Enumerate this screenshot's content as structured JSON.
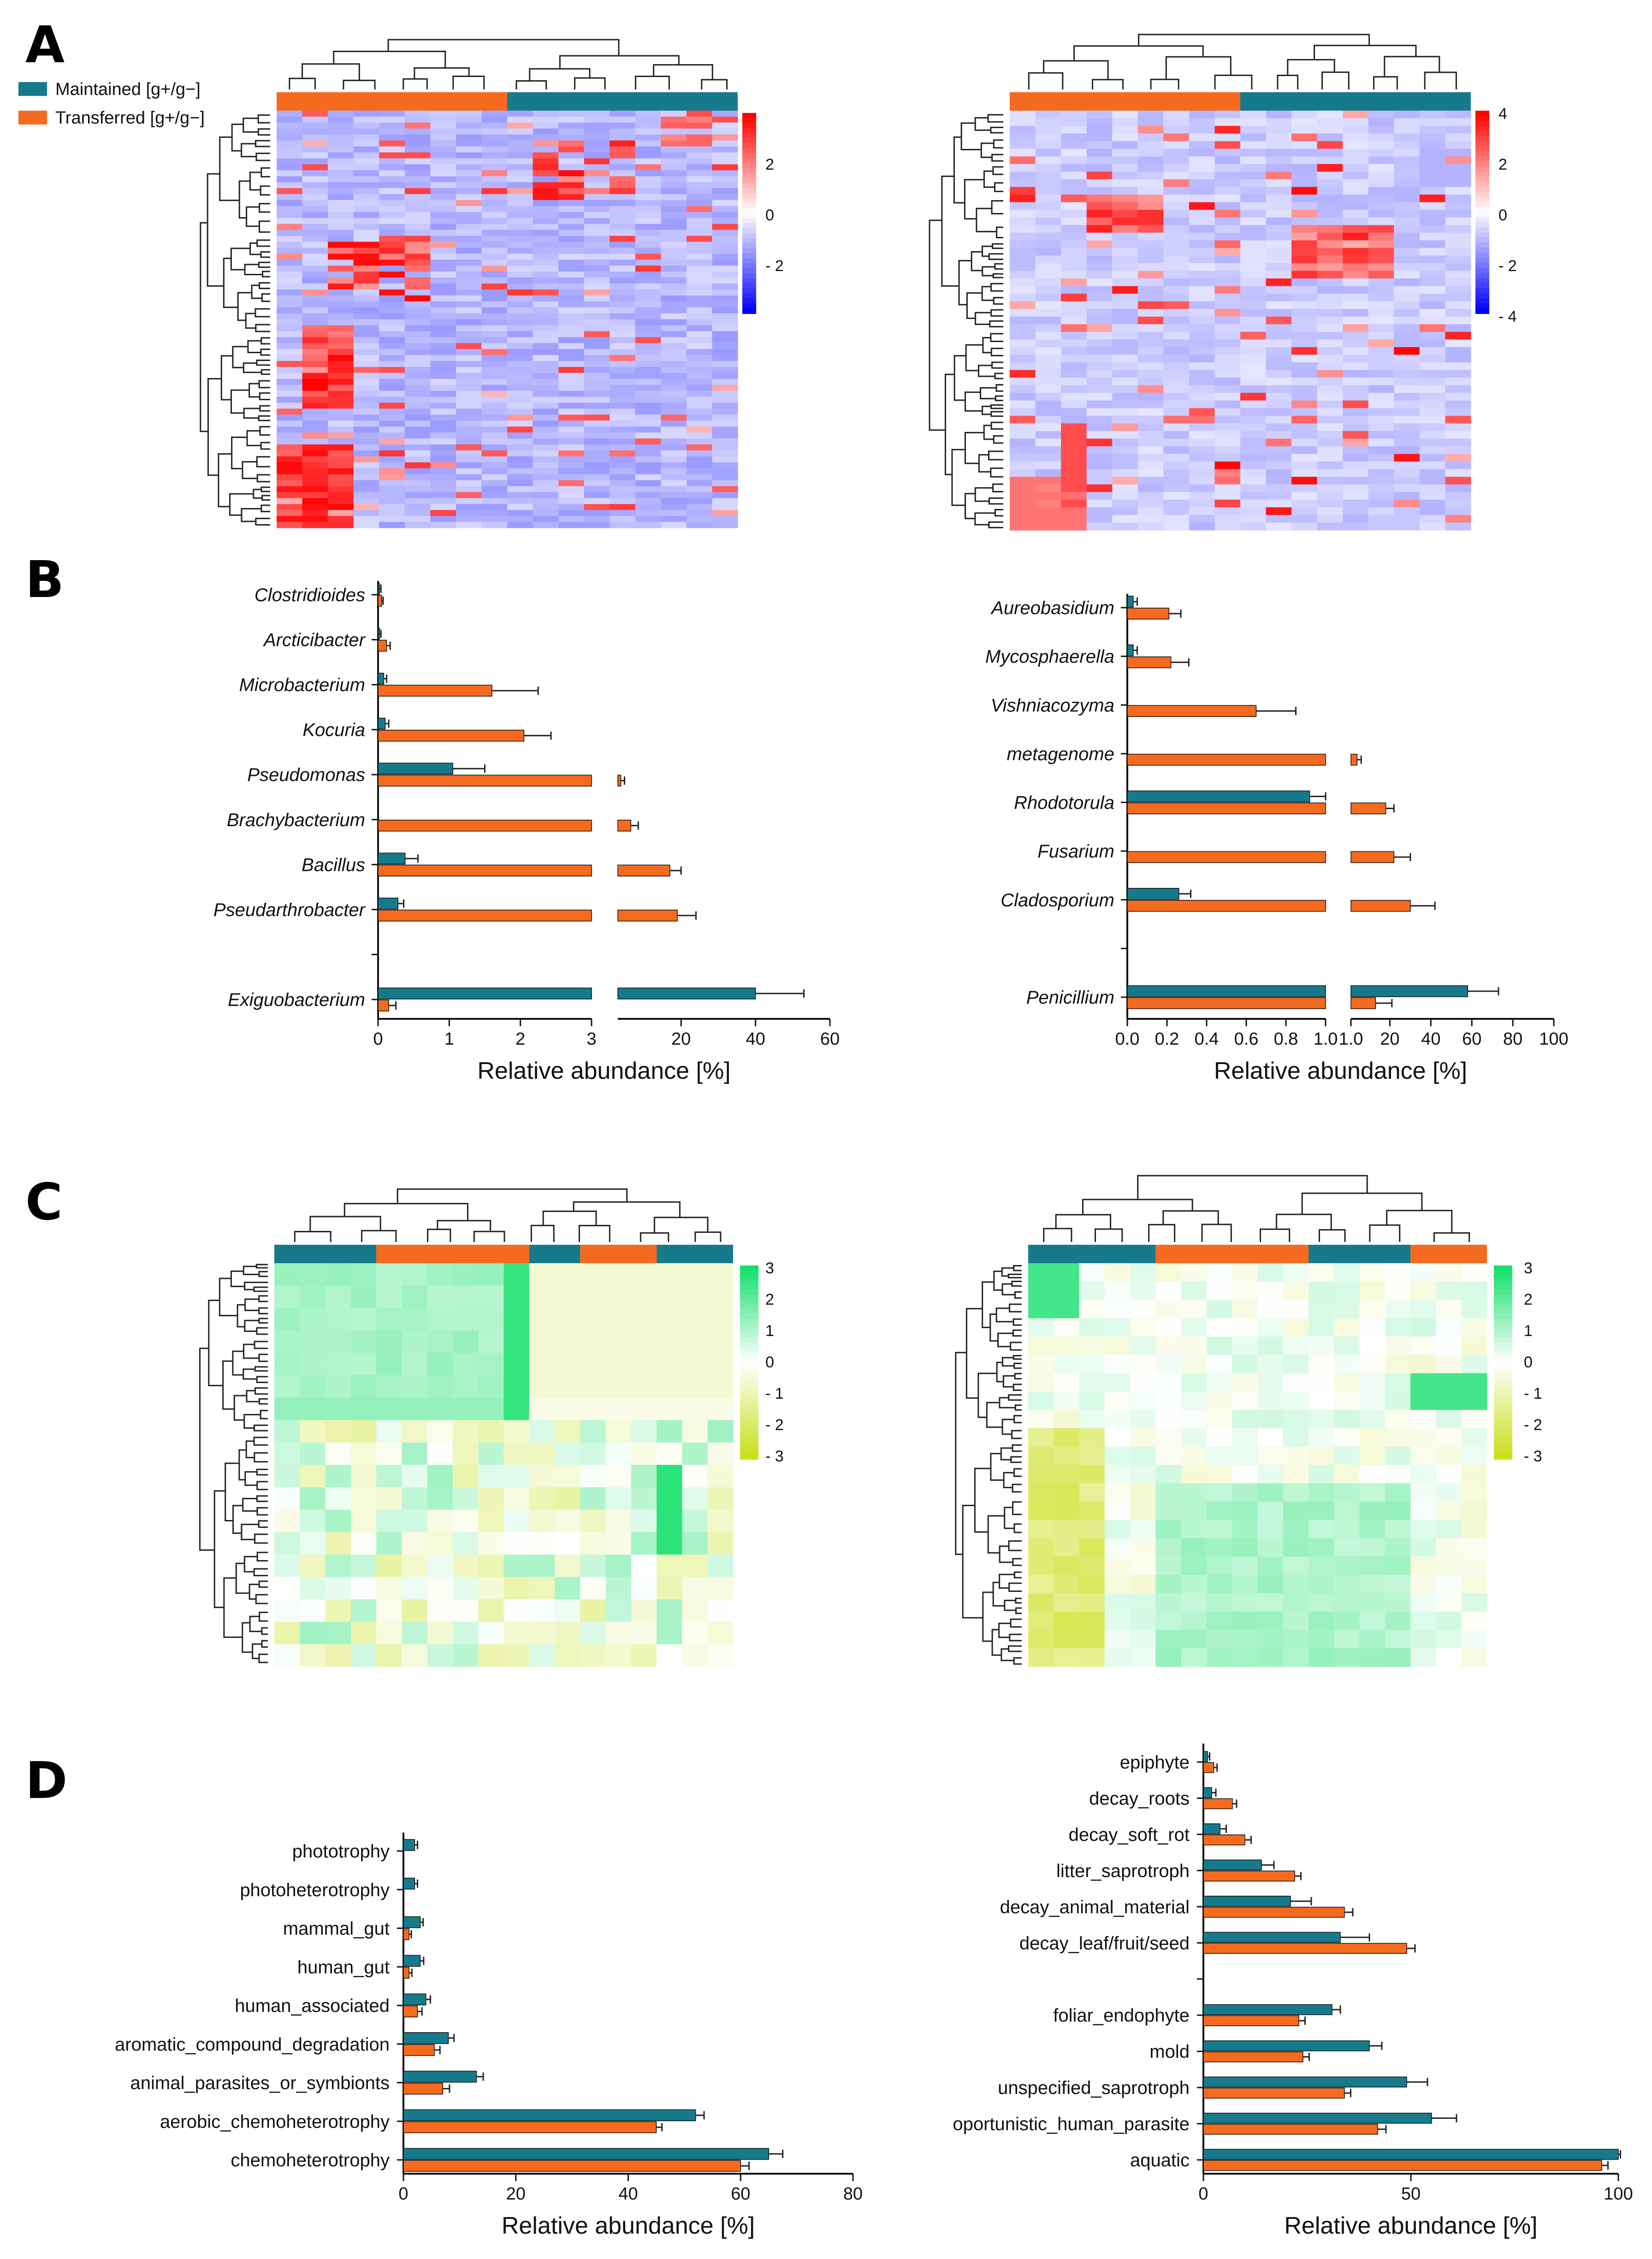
{
  "panels": {
    "a": "A",
    "b": "B",
    "c": "C",
    "d": "D"
  },
  "colors": {
    "maintained": "#167a8c",
    "transferred": "#f46a1f",
    "heat_pos": "#ff0000",
    "heat_neg": "#0000ff",
    "func_pos": "#14e06a",
    "func_neg": "#c8e01a"
  },
  "legend": {
    "maintained": "Maintained [g+/g−]",
    "transferred": "Transferred [g+/g−]"
  },
  "heatmaps": {
    "A_left": {
      "colorbar_ticks": [
        "2",
        "0",
        "- 2"
      ]
    },
    "A_right": {
      "colorbar_ticks": [
        "4",
        "2",
        "0",
        "- 2",
        "- 4"
      ]
    },
    "C_left": {
      "colorbar_ticks": [
        "3",
        "2",
        "1",
        "0",
        "- 1",
        "- 2",
        "- 3"
      ]
    },
    "C_right": {
      "colorbar_ticks": [
        "3",
        "2",
        "1",
        "0",
        "- 1",
        "- 2",
        "- 3"
      ]
    }
  },
  "chart_data": [
    {
      "id": "B_left",
      "type": "bar",
      "orientation": "horizontal",
      "xlabel": "Relative abundance [%]",
      "axis_break": {
        "left_range": [
          0,
          3
        ],
        "left_ticks": [
          "0",
          "1",
          "2",
          "3"
        ],
        "right_range": [
          3,
          60
        ],
        "right_ticks": [
          "20",
          "40",
          "60"
        ]
      },
      "categories": [
        "Clostridioides",
        "Arcticibacter",
        "Microbacterium",
        "Kocuria",
        "Pseudomonas",
        "Brachybacterium",
        "Bacillus",
        "Pseudarthrobacter",
        "",
        "Exiguobacterium"
      ],
      "series": [
        {
          "name": "Maintained [g+/g−]",
          "values": [
            0.02,
            0.02,
            0.08,
            0.1,
            1.05,
            0.0,
            0.38,
            0.28,
            null,
            40
          ],
          "errors": [
            0.02,
            0.02,
            0.04,
            0.05,
            0.45,
            0.0,
            0.18,
            0.08,
            null,
            13
          ]
        },
        {
          "name": "Transferred [g+/g−]",
          "values": [
            0.05,
            0.12,
            1.6,
            2.05,
            3.8,
            6.5,
            17,
            19,
            null,
            0.15
          ],
          "errors": [
            0.02,
            0.05,
            0.65,
            0.38,
            1.0,
            2,
            3,
            5,
            null,
            0.1
          ]
        }
      ]
    },
    {
      "id": "B_right",
      "type": "bar",
      "orientation": "horizontal",
      "xlabel": "Relative abundance [%]",
      "axis_break": {
        "left_range": [
          0,
          1
        ],
        "left_ticks": [
          "0.0",
          "0.2",
          "0.4",
          "0.6",
          "0.8",
          "1.0"
        ],
        "right_range": [
          1,
          100
        ],
        "right_ticks": [
          "1.0",
          "20",
          "40",
          "60",
          "80",
          "100"
        ]
      },
      "categories": [
        "Aureobasidium",
        "Mycosphaerella",
        "Vishniacozyma",
        "metagenome",
        "Rhodotorula",
        "Fusarium",
        "Cladosporium",
        "",
        "Penicillium"
      ],
      "series": [
        {
          "name": "Maintained [g+/g−]",
          "values": [
            0.03,
            0.03,
            0.0,
            0.0,
            0.92,
            0.0,
            0.26,
            null,
            58
          ],
          "errors": [
            0.02,
            0.02,
            0.0,
            0.0,
            0.08,
            0.0,
            0.06,
            null,
            15
          ]
        },
        {
          "name": "Transferred [g+/g−]",
          "values": [
            0.21,
            0.22,
            0.65,
            4,
            18,
            22,
            30,
            null,
            13
          ],
          "errors": [
            0.06,
            0.09,
            0.2,
            2,
            4,
            8,
            12,
            null,
            8
          ]
        }
      ]
    },
    {
      "id": "D_left",
      "type": "bar",
      "orientation": "horizontal",
      "xlabel": "Relative abundance [%]",
      "xlim": [
        0,
        80
      ],
      "xticks": [
        "0",
        "20",
        "40",
        "60",
        "80"
      ],
      "categories": [
        "phototrophy",
        "photoheterotrophy",
        "mammal_gut",
        "human_gut",
        "human_associated",
        "aromatic_compound_degradation",
        "animal_parasites_or_symbionts",
        "aerobic_chemoheterotrophy",
        "chemoheterotrophy"
      ],
      "series": [
        {
          "name": "Maintained [g+/g−]",
          "values": [
            2,
            2,
            3,
            3,
            4,
            8,
            13,
            52,
            65
          ],
          "errors": [
            0.5,
            0.5,
            0.5,
            0.6,
            0.8,
            1,
            1.2,
            1.5,
            2.5
          ]
        },
        {
          "name": "Transferred [g+/g−]",
          "values": [
            0,
            0,
            1,
            1,
            2.5,
            5.5,
            7,
            45,
            60
          ],
          "errors": [
            0,
            0,
            0.4,
            0.5,
            0.8,
            1,
            1.2,
            1,
            1.5
          ]
        }
      ]
    },
    {
      "id": "D_right",
      "type": "bar",
      "orientation": "horizontal",
      "xlabel": "Relative abundance [%]",
      "xlim": [
        0,
        100
      ],
      "xticks": [
        "0",
        "50",
        "100"
      ],
      "categories": [
        "epiphyte",
        "decay_roots",
        "decay_soft_rot",
        "litter_saprotroph",
        "decay_animal_material",
        "decay_leaf/fruit/seed",
        "",
        "foliar_endophyte",
        "mold",
        "unspecified_saprotroph",
        "oportunistic_human_parasite",
        "aquatic"
      ],
      "series": [
        {
          "name": "Maintained [g+/g−]",
          "values": [
            1,
            2,
            4,
            14,
            21,
            33,
            null,
            31,
            40,
            49,
            55,
            100
          ],
          "errors": [
            0.5,
            1,
            1.5,
            3,
            5,
            7,
            null,
            2,
            3,
            5,
            6,
            0.5
          ]
        },
        {
          "name": "Transferred [g+/g−]",
          "values": [
            2.5,
            7,
            10,
            22,
            34,
            49,
            null,
            23,
            24,
            34,
            42,
            96
          ],
          "errors": [
            0.8,
            1,
            1.5,
            1.5,
            2,
            2,
            null,
            1.5,
            1.5,
            1.5,
            2,
            1.5
          ]
        }
      ]
    }
  ]
}
